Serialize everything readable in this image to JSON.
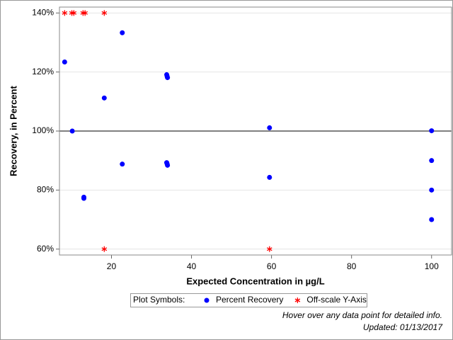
{
  "chart_data": {
    "type": "scatter",
    "xlabel": "Expected Concentration in µg/L",
    "ylabel": "Recovery, in Percent",
    "xlim": [
      7,
      105
    ],
    "ylim": [
      58,
      142
    ],
    "xticks": [
      20,
      40,
      60,
      80,
      100
    ],
    "yticks": [
      {
        "value": 60,
        "label": "60%"
      },
      {
        "value": 80,
        "label": "80%"
      },
      {
        "value": 100,
        "label": "100%"
      },
      {
        "value": 120,
        "label": "120%"
      },
      {
        "value": 140,
        "label": "140%"
      }
    ],
    "grid": true,
    "refline": 100,
    "legend_title": "Plot Symbols:",
    "series": [
      {
        "name": "Percent Recovery",
        "color": "#0000ff",
        "marker": "circle",
        "x": [
          8.3,
          10.2,
          13.1,
          13.1,
          18.2,
          22.7,
          22.7,
          33.8,
          33.9,
          34.0,
          33.8,
          33.9,
          34.0,
          59.5,
          59.5,
          100,
          100,
          100,
          100
        ],
        "values": [
          123.4,
          100,
          77.6,
          77.2,
          111.2,
          133.3,
          88.8,
          119.1,
          118.6,
          118.1,
          89.3,
          88.9,
          88.4,
          101.1,
          84.3,
          100.1,
          90,
          80,
          70
        ]
      },
      {
        "name": "Off-scale Y-Axis",
        "color": "#ff0000",
        "marker": "star",
        "x": [
          8.3,
          10.1,
          10.6,
          12.9,
          13.4,
          18.2,
          18.2,
          59.5
        ],
        "values": [
          140,
          140,
          140,
          140,
          140,
          140,
          60,
          60
        ]
      }
    ],
    "footnotes": [
      "Hover over any data point for detailed info.",
      "Updated: 01/13/2017"
    ]
  }
}
